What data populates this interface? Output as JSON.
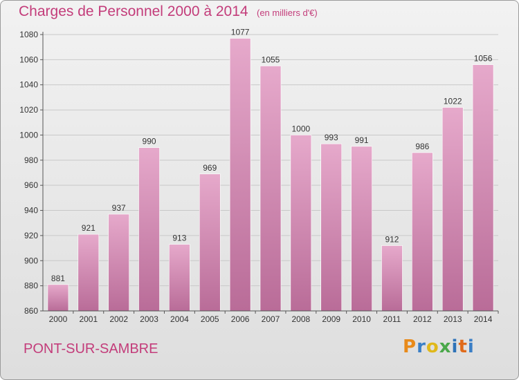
{
  "header": {
    "title": "Charges de Personnel 2000 à 2014",
    "subtitle": "(en milliers d'€)"
  },
  "footer": {
    "town": "PONT-SUR-SAMBRE",
    "logo_letters": [
      "P",
      "r",
      "o",
      "x",
      "i",
      "t",
      "i"
    ]
  },
  "chart_data": {
    "type": "bar",
    "title": "Charges de Personnel 2000 à 2014",
    "subtitle": "(en milliers d'€)",
    "xlabel": "",
    "ylabel": "",
    "categories": [
      "2000",
      "2001",
      "2002",
      "2003",
      "2004",
      "2005",
      "2006",
      "2007",
      "2008",
      "2009",
      "2010",
      "2011",
      "2012",
      "2013",
      "2014"
    ],
    "values": [
      881,
      921,
      937,
      990,
      913,
      969,
      1077,
      1055,
      1000,
      993,
      991,
      912,
      986,
      1022,
      1056
    ],
    "ylim": [
      860,
      1080
    ],
    "yticks": [
      860,
      880,
      900,
      920,
      940,
      960,
      980,
      1000,
      1020,
      1040,
      1060,
      1080
    ],
    "grid": true,
    "legend": "none",
    "colors": {
      "bar_light": "#e6a9cb",
      "bar_dark": "#b96c98",
      "axis": "#555555",
      "grid": "#c8c8c8",
      "label": "#333333"
    }
  }
}
